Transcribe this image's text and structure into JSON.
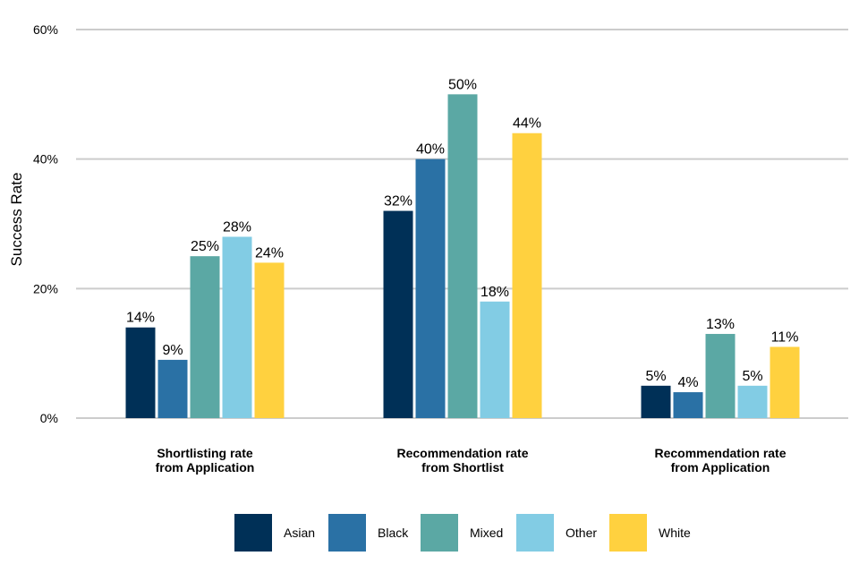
{
  "chart_data": {
    "type": "bar",
    "title": "",
    "xlabel": "",
    "ylabel": "Success Rate",
    "ylim": [
      0,
      60
    ],
    "yticks": [
      0,
      20,
      40,
      60
    ],
    "ytick_labels": [
      "0%",
      "20%",
      "40%",
      "60%"
    ],
    "grid": true,
    "legend_position": "bottom",
    "categories": [
      [
        "Shortlisting rate",
        "from Application"
      ],
      [
        "Recommendation rate",
        "from Shortlist"
      ],
      [
        "Recommendation rate",
        "from Application"
      ]
    ],
    "series": [
      {
        "name": "Asian",
        "color": "#003057",
        "values": [
          14,
          32,
          5
        ],
        "labels": [
          "14%",
          "32%",
          "5%"
        ]
      },
      {
        "name": "Black",
        "color": "#2A71A5",
        "values": [
          9,
          40,
          4
        ],
        "labels": [
          "9%",
          "40%",
          "4%"
        ]
      },
      {
        "name": "Mixed",
        "color": "#5BA8A4",
        "values": [
          25,
          50,
          13
        ],
        "labels": [
          "25%",
          "50%",
          "13%"
        ]
      },
      {
        "name": "Other",
        "color": "#82CCE4",
        "values": [
          28,
          18,
          5
        ],
        "labels": [
          "28%",
          "18%",
          "5%"
        ]
      },
      {
        "name": "White",
        "color": "#FFD13F",
        "values": [
          24,
          44,
          11
        ],
        "labels": [
          "24%",
          "44%",
          "11%"
        ]
      }
    ]
  }
}
